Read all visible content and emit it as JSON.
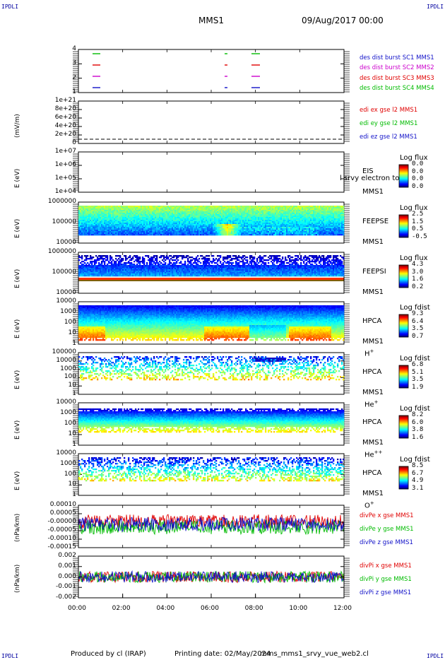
{
  "header": {
    "corner_tl": "IPDLI",
    "corner_tr": "IPDLI",
    "corner_bl": "IPDLI",
    "corner_br": "IPDLI",
    "spacecraft": "MMS1",
    "date": "09/Aug/2017 00:00"
  },
  "footer": {
    "produced": "Produced by cl (IRAP)",
    "printing": "Printing date: 02/May/2024",
    "script": "mms_mms1_srvy_vue_web2.cl"
  },
  "colors": {
    "blue": "#1010c8",
    "magenta": "#cc00cc",
    "red": "#e00000",
    "green": "#00bb00"
  },
  "chart_data": {
    "type": "multi-panel time series / spectrogram",
    "x_ticks": [
      "00:00",
      "02:00",
      "04:00",
      "06:00",
      "08:00",
      "10:00",
      "12:00"
    ],
    "xlim": [
      "00:00",
      "12:00"
    ],
    "panels": [
      {
        "id": "burst",
        "type": "scatter",
        "y_ticks": [
          "4",
          "3",
          "2",
          "1"
        ],
        "legend": [
          "des dist burst SC1 MMS1",
          "des dist burst SC2 MMS2",
          "des dist burst SC3 MMS3",
          "des dist burst SC4 MMS4"
        ],
        "legend_colors": [
          "#1010c8",
          "#cc00cc",
          "#e00000",
          "#00bb00"
        ]
      },
      {
        "id": "edi",
        "type": "line",
        "ylabel": "(mV/m)",
        "y_ticks": [
          "1e+21",
          "8e+20",
          "6e+20",
          "4e+20",
          "2e+20",
          "0"
        ],
        "legend": [
          "edi ex gse l2 MMS1",
          "edi ey gse l2 MMS1",
          "edi ez gse l2 MMS1"
        ],
        "legend_colors": [
          "#e00000",
          "#00bb00",
          "#1010c8"
        ]
      },
      {
        "id": "eis",
        "type": "heatmap",
        "ylabel": "E (eV)",
        "y_ticks": [
          "1e+07",
          "1e+06",
          "1e+05",
          "1e+04"
        ],
        "instrument": "EIS",
        "spacecraft": "MMS1",
        "overlay": "l srvy electron to",
        "colorbar_title": "Log flux",
        "colorbar_ticks": [
          "0.0",
          "0.0",
          "0.0",
          "0.0"
        ]
      },
      {
        "id": "feepse",
        "type": "heatmap",
        "ylabel": "E (eV)",
        "y_ticks": [
          "1000000",
          "100000",
          "10000"
        ],
        "instrument": "FEEPSE",
        "spacecraft": "MMS1",
        "colorbar_title": "Log flux",
        "colorbar_ticks": [
          "2.5",
          "1.5",
          "0.5",
          "-0.5"
        ]
      },
      {
        "id": "feepsi",
        "type": "heatmap",
        "ylabel": "E (eV)",
        "y_ticks": [
          "1000000",
          "100000",
          "10000"
        ],
        "instrument": "FEEPSI",
        "spacecraft": "MMS1",
        "colorbar_title": "Log flux",
        "colorbar_ticks": [
          "4.3",
          "3.0",
          "1.6",
          "0.2"
        ]
      },
      {
        "id": "hpca_h",
        "type": "heatmap",
        "ylabel": "E (eV)",
        "y_ticks": [
          "10000",
          "1000",
          "100",
          "10",
          "1"
        ],
        "instrument": "HPCA",
        "spacecraft": "MMS1",
        "species": "H",
        "species_sup": "+",
        "colorbar_title": "Log fdist",
        "colorbar_ticks": [
          "9.3",
          "6.4",
          "3.5",
          "0.7"
        ]
      },
      {
        "id": "hpca_he1",
        "type": "heatmap",
        "ylabel": "E (eV)",
        "y_ticks": [
          "100000",
          "10000",
          "1000",
          "100",
          "10",
          "1"
        ],
        "instrument": "HPCA",
        "spacecraft": "MMS1",
        "species": "He",
        "species_sup": "+",
        "colorbar_title": "Log fdist",
        "colorbar_ticks": [
          "6.8",
          "5.1",
          "3.5",
          "1.9"
        ]
      },
      {
        "id": "hpca_he2",
        "type": "heatmap",
        "ylabel": "E (eV)",
        "y_ticks": [
          "10000",
          "1000",
          "100",
          "10",
          "1"
        ],
        "instrument": "HPCA",
        "spacecraft": "MMS1",
        "species": "He",
        "species_sup": "++",
        "colorbar_title": "Log fdist",
        "colorbar_ticks": [
          "8.2",
          "6.0",
          "3.8",
          "1.6"
        ]
      },
      {
        "id": "hpca_o",
        "type": "heatmap",
        "ylabel": "E (eV)",
        "y_ticks": [
          "10000",
          "1000",
          "100",
          "10",
          "1"
        ],
        "instrument": "HPCA",
        "spacecraft": "MMS1",
        "species": "O",
        "species_sup": "+",
        "colorbar_title": "Log fdist",
        "colorbar_ticks": [
          "8.5",
          "6.7",
          "4.9",
          "3.1"
        ]
      },
      {
        "id": "divpe",
        "type": "line",
        "ylabel": "(nPa/km)",
        "y_ticks": [
          "0.00010",
          "0.00005",
          "-0.00000",
          "-0.00005",
          "-0.00010",
          "-0.00015"
        ],
        "legend": [
          "divPe x gse MMS1",
          "divPe y gse MMS1",
          "divPe z gse MMS1"
        ],
        "legend_colors": [
          "#e00000",
          "#00bb00",
          "#1010c8"
        ]
      },
      {
        "id": "divpi",
        "type": "line",
        "ylabel": "(nPa/km)",
        "y_ticks": [
          "0.002",
          "0.001",
          "0.000",
          "-0.001",
          "-0.002"
        ],
        "legend": [
          "divPi x gse MMS1",
          "divPi y gse MMS1",
          "divPi z gse MMS1"
        ],
        "legend_colors": [
          "#e00000",
          "#00bb00",
          "#1010c8"
        ]
      }
    ]
  }
}
